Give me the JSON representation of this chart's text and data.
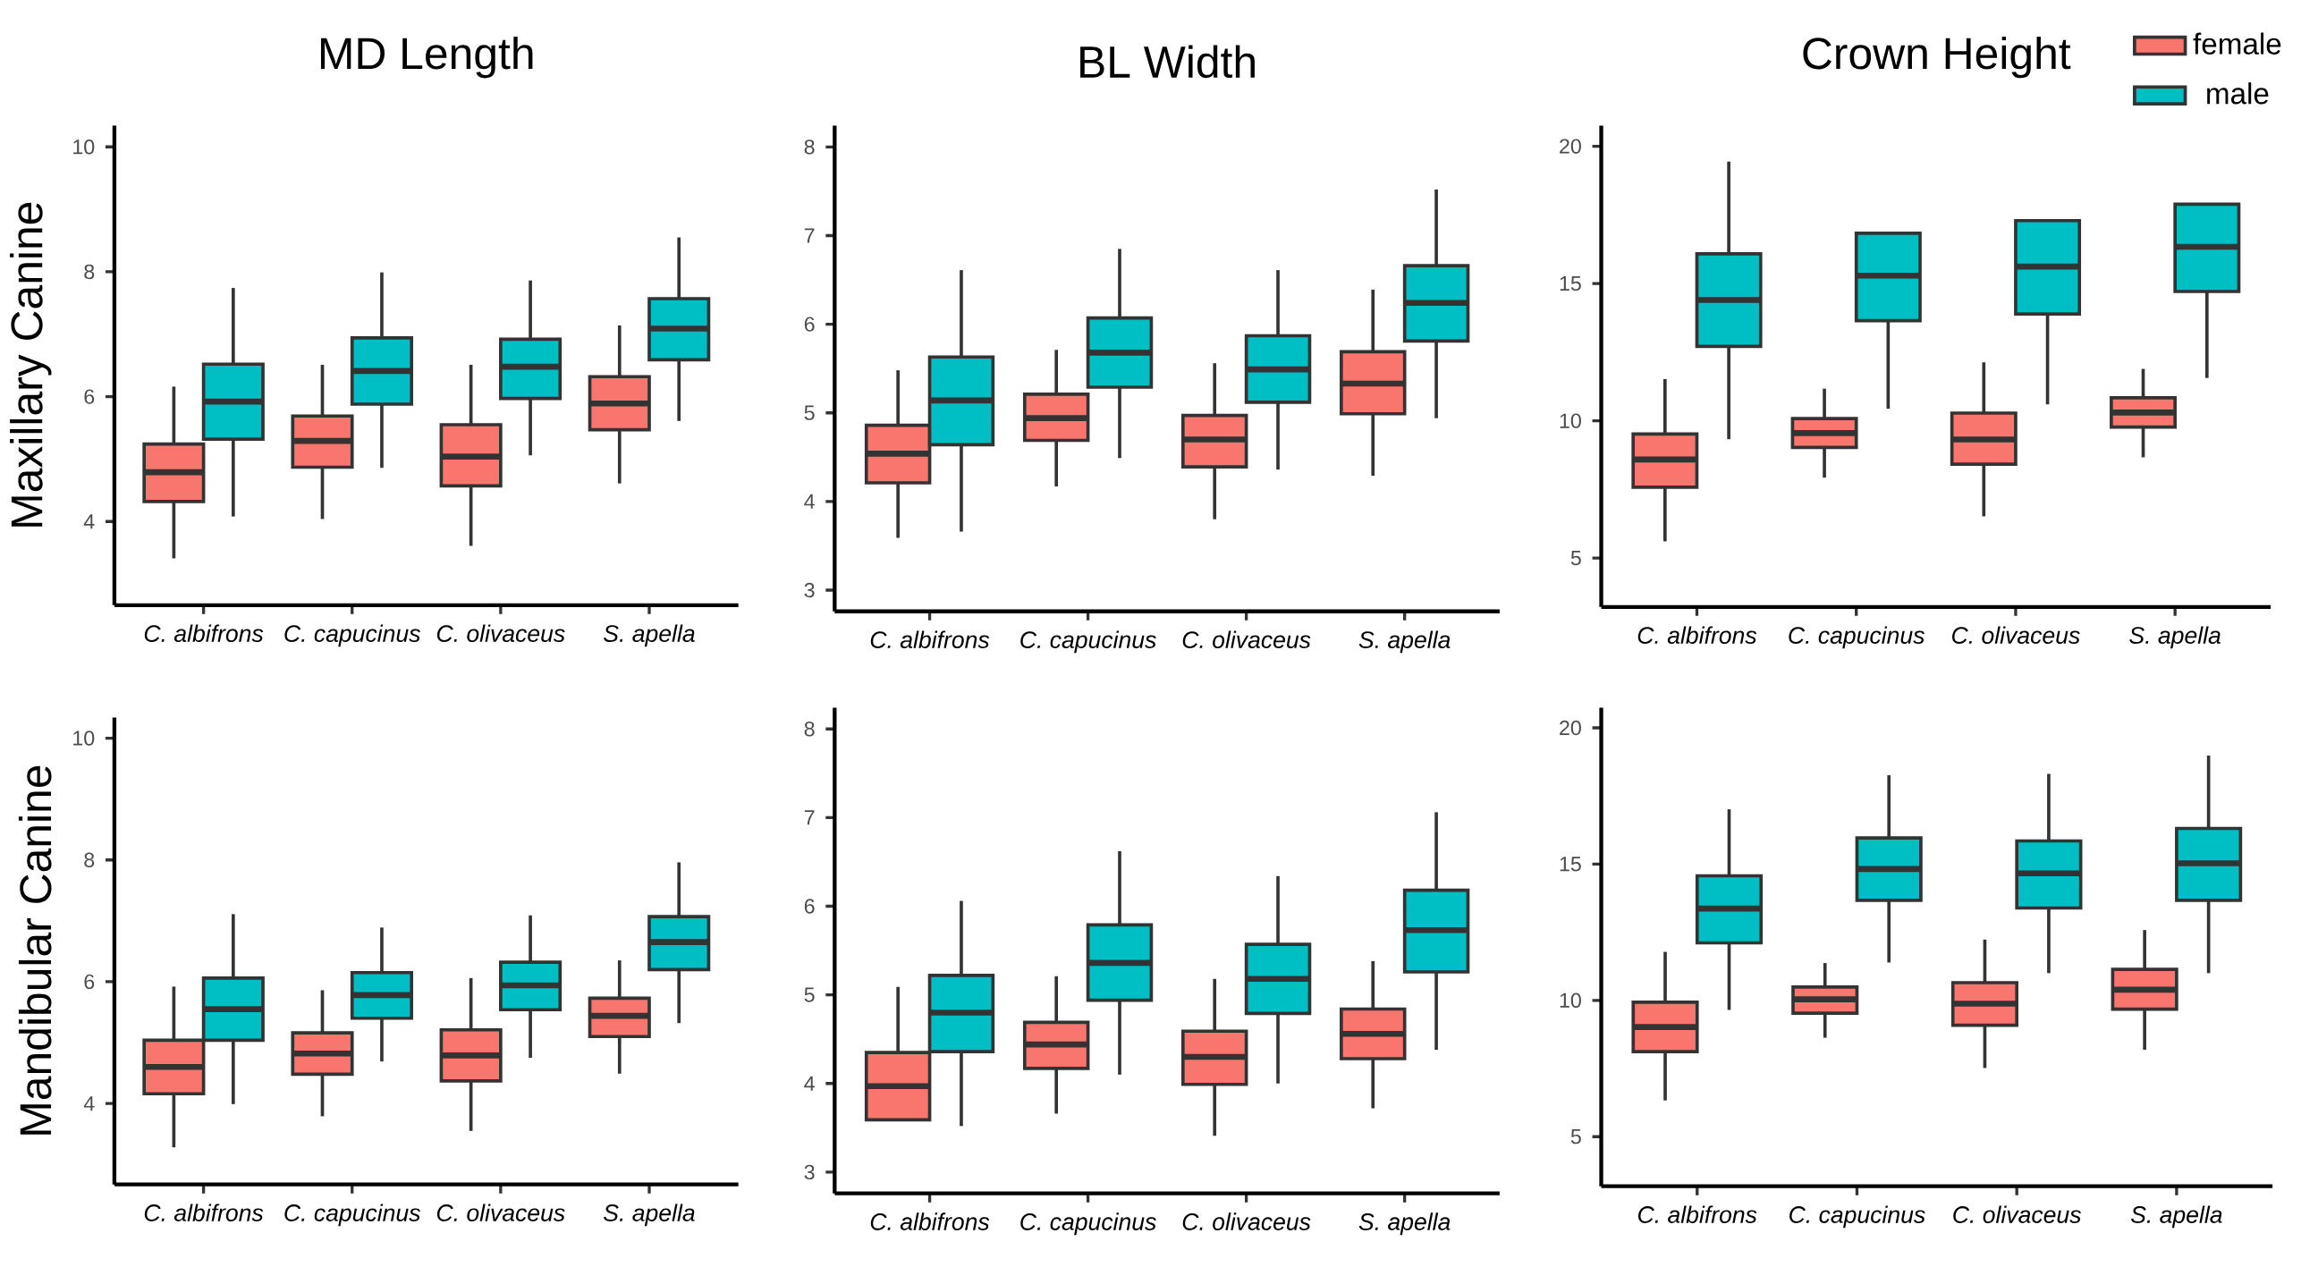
{
  "chart_data": [
    {
      "type": "box",
      "title": "MD Length",
      "ylabel": "Maxillary Canine",
      "categories": [
        "C. albifrons",
        "C. capucinus",
        "C. olivaceus",
        "S. apella"
      ],
      "ylim": [
        2.66,
        10.34
      ],
      "yticks": [
        4,
        6,
        8,
        10
      ],
      "series": [
        {
          "color": "#f8766d",
          "boxes": [
            {
              "low": 3.41,
              "q1": 4.32,
              "median": 4.79,
              "q3": 5.24,
              "high": 6.16
            },
            {
              "low": 4.04,
              "q1": 4.87,
              "median": 5.29,
              "q3": 5.69,
              "high": 6.51
            },
            {
              "low": 3.61,
              "q1": 4.57,
              "median": 5.04,
              "q3": 5.55,
              "high": 6.51
            },
            {
              "low": 4.61,
              "q1": 5.47,
              "median": 5.89,
              "q3": 6.32,
              "high": 7.14
            }
          ]
        },
        {
          "color": "#00bfc4",
          "boxes": [
            {
              "low": 4.08,
              "q1": 5.32,
              "median": 5.92,
              "q3": 6.52,
              "high": 7.74
            },
            {
              "low": 4.86,
              "q1": 5.88,
              "median": 6.41,
              "q3": 6.94,
              "high": 7.99
            },
            {
              "low": 5.06,
              "q1": 5.97,
              "median": 6.48,
              "q3": 6.92,
              "high": 7.86
            },
            {
              "low": 5.61,
              "q1": 6.59,
              "median": 7.09,
              "q3": 7.57,
              "high": 8.55
            }
          ]
        }
      ]
    },
    {
      "type": "box",
      "title": "BL Width",
      "categories": [
        "C. albifrons",
        "C. capucinus",
        "C. olivaceus",
        "S. apella"
      ],
      "ylim": [
        2.76,
        8.24
      ],
      "yticks": [
        3,
        4,
        5,
        6,
        7,
        8
      ],
      "series": [
        {
          "color": "#f8766d",
          "boxes": [
            {
              "low": 3.59,
              "q1": 4.21,
              "median": 4.54,
              "q3": 4.86,
              "high": 5.48
            },
            {
              "low": 4.17,
              "q1": 4.69,
              "median": 4.94,
              "q3": 5.21,
              "high": 5.71
            },
            {
              "low": 3.8,
              "q1": 4.39,
              "median": 4.7,
              "q3": 4.97,
              "high": 5.56
            },
            {
              "low": 4.29,
              "q1": 4.99,
              "median": 5.33,
              "q3": 5.69,
              "high": 6.39
            }
          ]
        },
        {
          "color": "#00bfc4",
          "boxes": [
            {
              "low": 3.66,
              "q1": 4.64,
              "median": 5.14,
              "q3": 5.63,
              "high": 6.61
            },
            {
              "low": 4.49,
              "q1": 5.29,
              "median": 5.68,
              "q3": 6.07,
              "high": 6.85
            },
            {
              "low": 4.36,
              "q1": 5.12,
              "median": 5.49,
              "q3": 5.87,
              "high": 6.61
            },
            {
              "low": 4.94,
              "q1": 5.81,
              "median": 6.24,
              "q3": 6.66,
              "high": 7.52
            }
          ]
        }
      ]
    },
    {
      "type": "box",
      "title": "Crown Height",
      "categories": [
        "C. albifrons",
        "C. capucinus",
        "C. olivaceus",
        "S. apella"
      ],
      "ylim": [
        3.22,
        20.75
      ],
      "yticks": [
        5,
        10,
        15,
        20
      ],
      "legend": "top right",
      "series": [
        {
          "name": "female",
          "color": "#f8766d",
          "boxes": [
            {
              "low": 5.61,
              "q1": 7.58,
              "median": 8.59,
              "q3": 9.52,
              "high": 11.52
            },
            {
              "low": 7.93,
              "q1": 9.03,
              "median": 9.55,
              "q3": 10.08,
              "high": 11.17
            },
            {
              "low": 6.52,
              "q1": 8.42,
              "median": 9.32,
              "q3": 10.28,
              "high": 12.13
            },
            {
              "low": 8.67,
              "q1": 9.77,
              "median": 10.3,
              "q3": 10.84,
              "high": 11.89
            }
          ]
        },
        {
          "name": "male",
          "color": "#00bfc4",
          "boxes": [
            {
              "low": 9.33,
              "q1": 12.71,
              "median": 14.4,
              "q3": 16.08,
              "high": 19.44
            },
            {
              "low": 10.44,
              "q1": 13.65,
              "median": 15.29,
              "q3": 16.83,
              "high": 16.83
            },
            {
              "low": 10.6,
              "q1": 13.89,
              "median": 15.62,
              "q3": 17.29,
              "high": 17.29
            },
            {
              "low": 11.56,
              "q1": 14.71,
              "median": 16.34,
              "q3": 17.89,
              "high": 17.89
            }
          ]
        }
      ]
    },
    {
      "type": "box",
      "ylabel": "Mandibular Canine",
      "categories": [
        "C. albifrons",
        "C. capucinus",
        "C. olivaceus",
        "S. apella"
      ],
      "ylim": [
        2.67,
        10.34
      ],
      "yticks": [
        4,
        6,
        8,
        10
      ],
      "series": [
        {
          "color": "#f8766d",
          "boxes": [
            {
              "low": 3.28,
              "q1": 4.16,
              "median": 4.6,
              "q3": 5.04,
              "high": 5.92
            },
            {
              "low": 3.79,
              "q1": 4.48,
              "median": 4.82,
              "q3": 5.16,
              "high": 5.86
            },
            {
              "low": 3.55,
              "q1": 4.37,
              "median": 4.79,
              "q3": 5.21,
              "high": 6.06
            },
            {
              "low": 4.49,
              "q1": 5.1,
              "median": 5.44,
              "q3": 5.73,
              "high": 6.35
            }
          ]
        },
        {
          "color": "#00bfc4",
          "boxes": [
            {
              "low": 3.99,
              "q1": 5.04,
              "median": 5.55,
              "q3": 6.06,
              "high": 7.11
            },
            {
              "low": 4.69,
              "q1": 5.4,
              "median": 5.78,
              "q3": 6.15,
              "high": 6.89
            },
            {
              "low": 4.75,
              "q1": 5.54,
              "median": 5.94,
              "q3": 6.32,
              "high": 7.09
            },
            {
              "low": 5.32,
              "q1": 6.2,
              "median": 6.65,
              "q3": 7.07,
              "high": 7.96
            }
          ]
        }
      ]
    },
    {
      "type": "box",
      "categories": [
        "C. albifrons",
        "C. capucinus",
        "C. olivaceus",
        "S. apella"
      ],
      "ylim": [
        2.76,
        8.24
      ],
      "yticks": [
        3,
        4,
        5,
        6,
        7,
        8
      ],
      "series": [
        {
          "color": "#f8766d",
          "boxes": [
            {
              "low": 3.59,
              "q1": 3.59,
              "median": 3.97,
              "q3": 4.35,
              "high": 5.09
            },
            {
              "low": 3.66,
              "q1": 4.17,
              "median": 4.44,
              "q3": 4.69,
              "high": 5.21
            },
            {
              "low": 3.41,
              "q1": 3.99,
              "median": 4.3,
              "q3": 4.59,
              "high": 5.18
            },
            {
              "low": 3.72,
              "q1": 4.28,
              "median": 4.56,
              "q3": 4.84,
              "high": 5.38
            }
          ]
        },
        {
          "color": "#00bfc4",
          "boxes": [
            {
              "low": 3.52,
              "q1": 4.36,
              "median": 4.8,
              "q3": 5.22,
              "high": 6.06
            },
            {
              "low": 4.1,
              "q1": 4.94,
              "median": 5.36,
              "q3": 5.79,
              "high": 6.62
            },
            {
              "low": 4.0,
              "q1": 4.79,
              "median": 5.18,
              "q3": 5.57,
              "high": 6.34
            },
            {
              "low": 4.38,
              "q1": 5.26,
              "median": 5.73,
              "q3": 6.18,
              "high": 7.06
            }
          ]
        }
      ]
    },
    {
      "type": "box",
      "categories": [
        "C. albifrons",
        "C. capucinus",
        "C. olivaceus",
        "S. apella"
      ],
      "ylim": [
        3.18,
        20.74
      ],
      "yticks": [
        5,
        10,
        15,
        20
      ],
      "series": [
        {
          "color": "#f8766d",
          "boxes": [
            {
              "low": 6.33,
              "q1": 8.12,
              "median": 9.02,
              "q3": 9.93,
              "high": 11.78
            },
            {
              "low": 8.63,
              "q1": 9.53,
              "median": 10.04,
              "q3": 10.49,
              "high": 11.37
            },
            {
              "low": 7.52,
              "q1": 9.09,
              "median": 9.88,
              "q3": 10.65,
              "high": 12.23
            },
            {
              "low": 8.19,
              "q1": 9.68,
              "median": 10.39,
              "q3": 11.14,
              "high": 12.58
            }
          ]
        },
        {
          "color": "#00bfc4",
          "boxes": [
            {
              "low": 9.65,
              "q1": 12.11,
              "median": 13.37,
              "q3": 14.57,
              "high": 17.01
            },
            {
              "low": 11.39,
              "q1": 13.67,
              "median": 14.82,
              "q3": 15.96,
              "high": 18.26
            },
            {
              "low": 11.0,
              "q1": 13.39,
              "median": 14.66,
              "q3": 15.85,
              "high": 18.31
            },
            {
              "low": 11.0,
              "q1": 13.67,
              "median": 15.03,
              "q3": 16.31,
              "high": 18.98
            }
          ]
        }
      ]
    }
  ]
}
